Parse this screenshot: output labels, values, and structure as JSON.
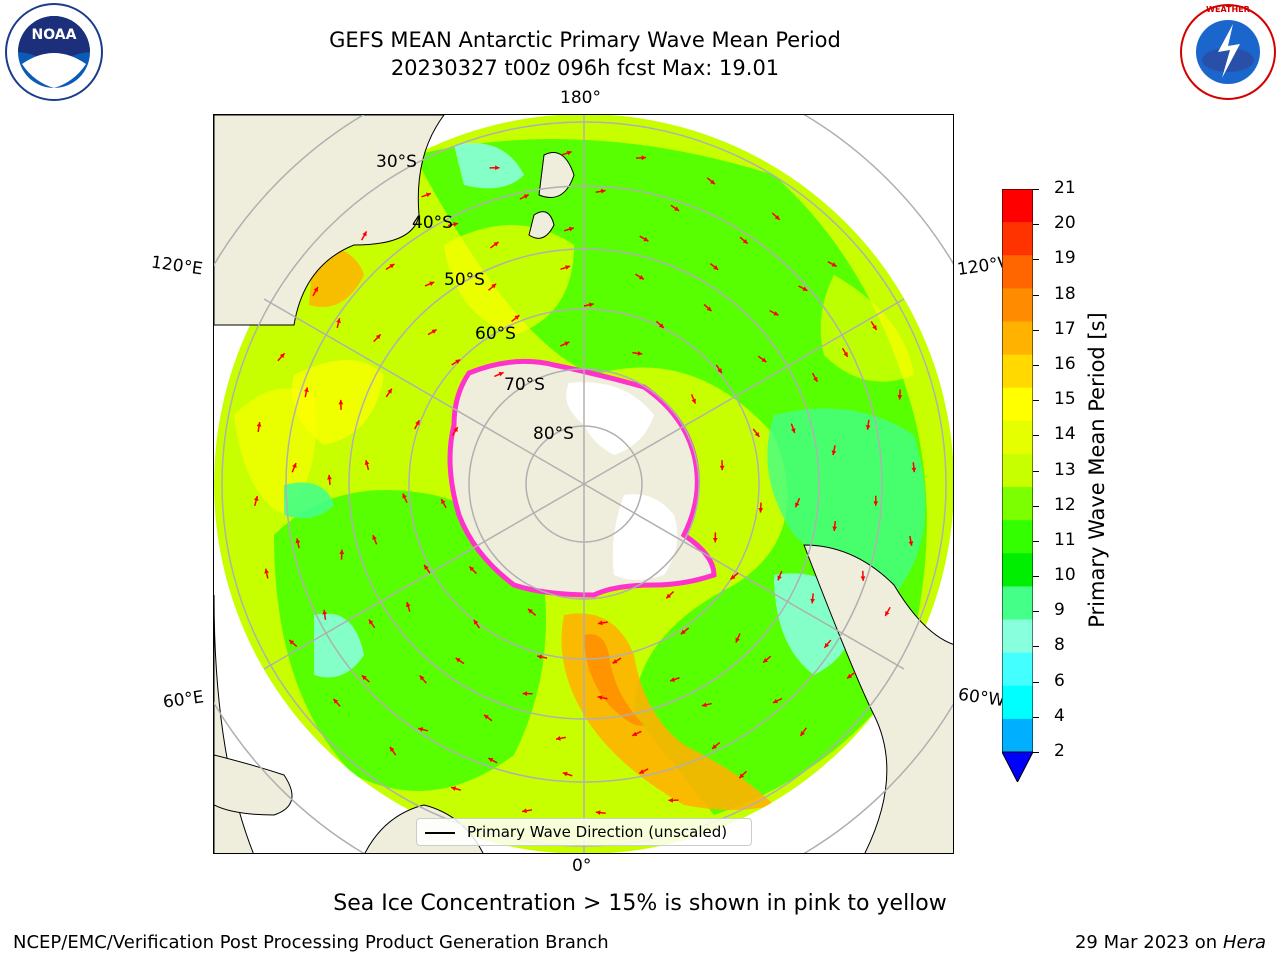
{
  "title_line1": "GEFS MEAN Antarctic Primary Wave Mean Period",
  "title_line2": "20230327 t00z 096h fcst   Max: 19.01",
  "logos": {
    "left": "noaa-logo",
    "right": "nws-logo",
    "left_text": "NOAA",
    "right_text": "NATIONAL WEATHER SERVICE"
  },
  "map": {
    "lon_labels": {
      "top": "180°",
      "bottom": "0°",
      "left_upper": "120°E",
      "left_lower": "60°E",
      "right_upper": "120°W",
      "right_lower": "60°W"
    },
    "lat_labels": [
      "30°S",
      "40°S",
      "50°S",
      "60°S",
      "70°S",
      "80°S"
    ],
    "legend_label": "Primary Wave Direction (unscaled)",
    "colors": {
      "land": "#efeddc",
      "ice_edge": "#ff33cc",
      "arrow": "#ff0000",
      "grid": "#b0b0b0"
    }
  },
  "colorbar": {
    "title": "Primary Wave Mean Period [s]",
    "ticks": [
      "21",
      "20",
      "19",
      "18",
      "17",
      "16",
      "15",
      "14",
      "13",
      "12",
      "11",
      "10",
      "9",
      "8",
      "6",
      "4",
      "2"
    ],
    "colors": [
      "#ff0000",
      "#ff3300",
      "#ff6600",
      "#ff8c00",
      "#ffb300",
      "#ffd900",
      "#ffff00",
      "#e6ff00",
      "#c8ff00",
      "#7cff00",
      "#33ff00",
      "#00ee00",
      "#44ff88",
      "#88ffdd",
      "#44ffff",
      "#00ffff",
      "#00b0ff",
      "#0066ff"
    ]
  },
  "caption": "Sea Ice Concentration > 15% is shown in pink to yellow",
  "footer_left": "NCEP/EMC/Verification Post Processing Product Generation Branch",
  "footer_right_date": "29 Mar 2023 on",
  "footer_right_host": "Hera"
}
